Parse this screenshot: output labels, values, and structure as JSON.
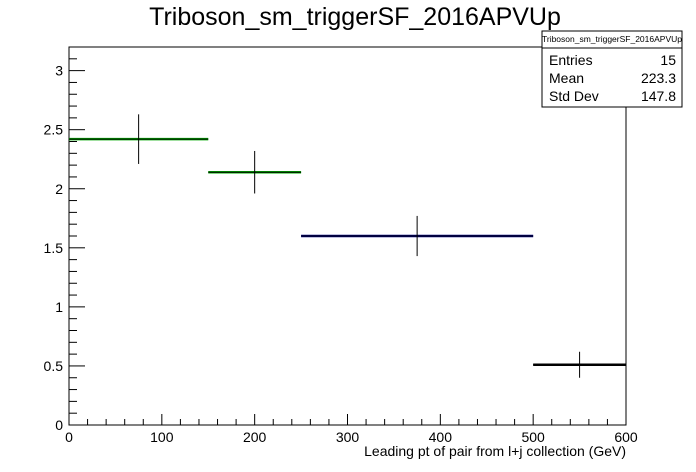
{
  "chart_data": {
    "type": "histogram",
    "title": "Triboson_sm_triggerSF_2016APVUp",
    "xlabel": "Leading pt of pair from l+j collection (GeV)",
    "ylabel": "",
    "xlim": [
      0,
      600
    ],
    "ylim": [
      0,
      3.2
    ],
    "x_ticks": [
      "0",
      "100",
      "200",
      "300",
      "400",
      "500",
      "600"
    ],
    "y_ticks": [
      "0",
      "0.5",
      "1",
      "1.5",
      "2",
      "2.5",
      "3"
    ],
    "grid": false,
    "bins": [
      {
        "x_low": 0,
        "x_high": 150,
        "value": 2.42,
        "error": 0.21,
        "color": "#00aa00"
      },
      {
        "x_low": 150,
        "x_high": 250,
        "value": 2.14,
        "error": 0.18,
        "color": "#00aa00"
      },
      {
        "x_low": 250,
        "x_high": 500,
        "value": 1.6,
        "error": 0.17,
        "color": "#000080"
      },
      {
        "x_low": 500,
        "x_high": 600,
        "value": 0.51,
        "error": 0.11,
        "color": "#000000"
      }
    ],
    "stats_box": {
      "title": "Triboson_sm_triggerSF_2016APVUp",
      "rows": [
        {
          "label": "Entries",
          "value": "15"
        },
        {
          "label": "Mean",
          "value": "223.3"
        },
        {
          "label": "Std Dev",
          "value": "147.8"
        }
      ]
    }
  }
}
